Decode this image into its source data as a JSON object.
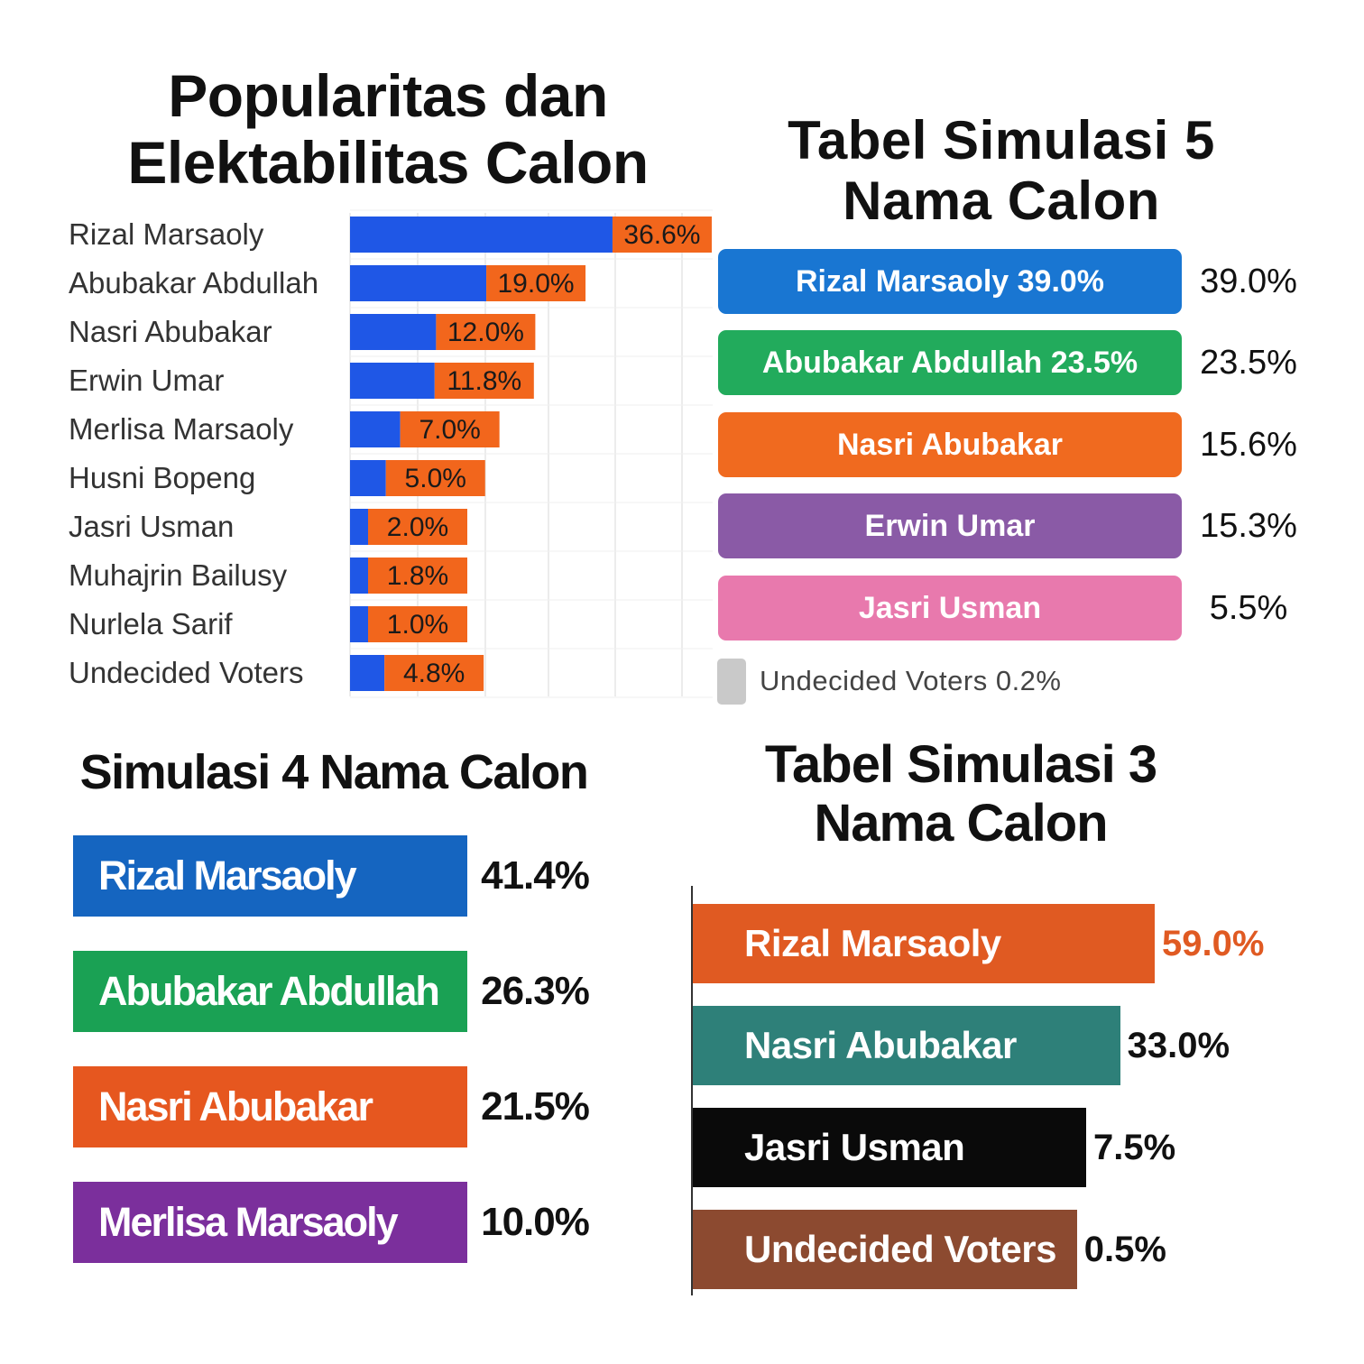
{
  "chart_data": [
    {
      "type": "bar",
      "title": "Popularitas dan Elektabilitas Calon",
      "orientation": "horizontal",
      "categories": [
        "Rizal Marsaoly",
        "Abubakar Abdullah",
        "Nasri Abubakar",
        "Erwin Umar",
        "Merlisa Marsaoly",
        "Husni Bopeng",
        "Jasri Usman",
        "Muhajrin Bailusy",
        "Nurlela Sarif",
        "Undecided Voters"
      ],
      "values": [
        36.6,
        19.0,
        12.0,
        11.8,
        7.0,
        5.0,
        2.0,
        1.8,
        1.0,
        4.8
      ],
      "value_labels": [
        "36.6%",
        "19.0%",
        "12.0%",
        "11.8%",
        "7.0%",
        "5.0%",
        "2.0%",
        "1.8%",
        "1.0%",
        "4.8%"
      ],
      "colors": {
        "bar": "#1f57e6",
        "label_box": "#f2661c"
      },
      "grid": true
    },
    {
      "type": "table",
      "title": "Tabel Simulasi 5 Nama Calon",
      "rows": [
        {
          "label": "Rizal Marsaoly 39.0%",
          "value": 39.0,
          "value_label": "39.0%",
          "color": "#1976d2"
        },
        {
          "label": "Abubakar Abdullah 23.5%",
          "value": 23.5,
          "value_label": "23.5%",
          "color": "#22ab5c"
        },
        {
          "label": "Nasri Abubakar",
          "value": 15.6,
          "value_label": "15.6%",
          "color": "#f06a1f"
        },
        {
          "label": "Erwin Umar",
          "value": 15.3,
          "value_label": "15.3%",
          "color": "#8a5aa6"
        },
        {
          "label": "Jasri Usman",
          "value": 5.5,
          "value_label": "5.5%",
          "color": "#e879ad"
        }
      ],
      "note": {
        "label": "Undecided Voters 0.2%",
        "color": "#c9c9c9"
      }
    },
    {
      "type": "table",
      "title": "Simulasi 4 Nama Calon",
      "rows": [
        {
          "label": "Rizal Marsaoly",
          "value": 41.4,
          "value_label": "41.4%",
          "color": "#1565c0"
        },
        {
          "label": "Abubakar Abdullah",
          "value": 26.3,
          "value_label": "26.3%",
          "color": "#1aa154"
        },
        {
          "label": "Nasri Abubakar",
          "value": 21.5,
          "value_label": "21.5%",
          "color": "#e6571f"
        },
        {
          "label": "Merlisa Marsaoly",
          "value": 10.0,
          "value_label": "10.0%",
          "color": "#7b2f9c"
        }
      ]
    },
    {
      "type": "bar",
      "title": "Tabel Simulasi 3 Nama Calon",
      "orientation": "horizontal",
      "xlim": [
        0,
        59
      ],
      "rows": [
        {
          "label": "Rizal Marsaoly",
          "value": 59.0,
          "value_label": "59.0%",
          "color": "#e05a22",
          "label_color": "#e05a22"
        },
        {
          "label": "Nasri Abubakar",
          "value": 33.0,
          "value_label": "33.0%",
          "color": "#2e8079",
          "label_color": "#111111"
        },
        {
          "label": "Jasri Usman",
          "value": 7.5,
          "value_label": "7.5%",
          "color": "#0a0a0a",
          "label_color": "#111111"
        },
        {
          "label": "Undecided Voters",
          "value": 0.5,
          "value_label": "0.5%",
          "color": "#8c4a30",
          "label_color": "#111111"
        }
      ]
    }
  ]
}
